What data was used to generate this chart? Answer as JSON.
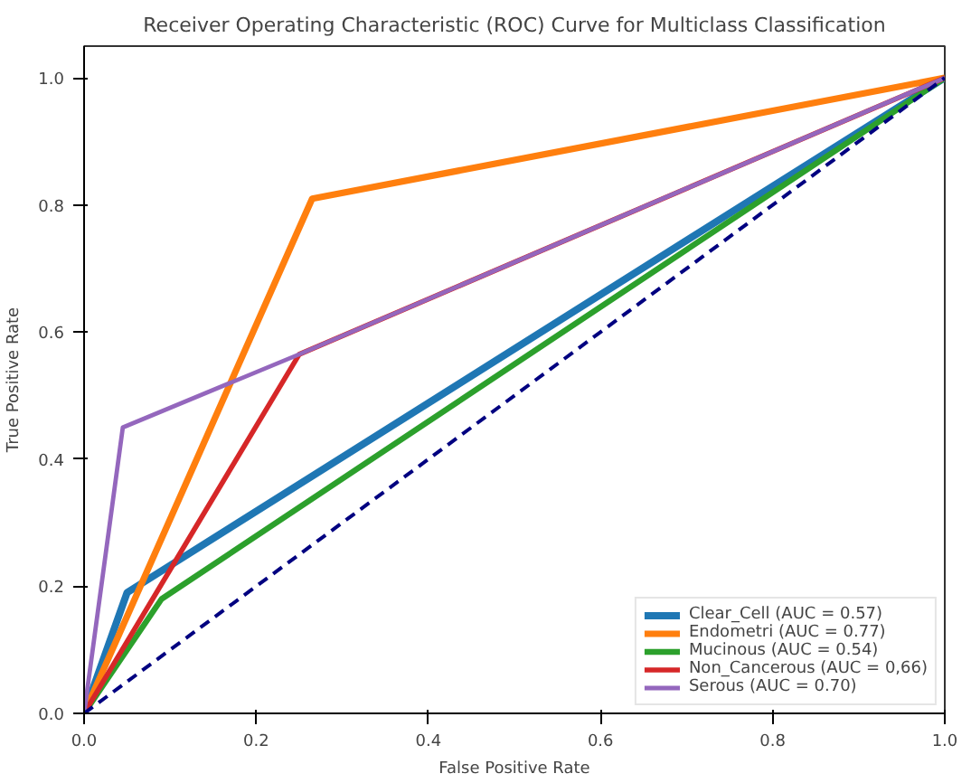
{
  "chart_data": {
    "type": "line",
    "title": "Receiver Operating Characteristic (ROC) Curve for Multiclass Classification",
    "xlabel": "False Positive Rate",
    "ylabel": "True Positive Rate",
    "series": [
      {
        "name": "Clear_Cell (AUC = 0.57)",
        "color": "#1f77b4",
        "x": [
          0,
          0.05,
          1
        ],
        "values": [
          0,
          0.19,
          1
        ]
      },
      {
        "name": "Endometri (AUC = 0.77)",
        "color": "#ff7f0e",
        "x": [
          0,
          0.265,
          1
        ],
        "values": [
          0,
          0.81,
          1
        ]
      },
      {
        "name": "Mucinous (AUC = 0.54)",
        "color": "#2ca02c",
        "x": [
          0,
          0.09,
          1
        ],
        "values": [
          0,
          0.18,
          1
        ]
      },
      {
        "name": "Non_Cancerous (AUC = 0,66)",
        "color": "#d62728",
        "x": [
          0,
          0.25,
          1
        ],
        "values": [
          0,
          0.565,
          1
        ]
      },
      {
        "name": "Serous (AUC = 0.70)",
        "color": "#9467bd",
        "x": [
          0,
          0.045,
          0.25,
          1
        ],
        "values": [
          0,
          0.45,
          0.565,
          1
        ]
      },
      {
        "color": "#000080",
        "line_style": "dashed",
        "x": [
          0,
          1
        ],
        "values": [
          0,
          1
        ]
      }
    ],
    "xlim": [
      0,
      1
    ],
    "ylim": [
      0,
      1.05
    ],
    "xticks": [
      {
        "value": 0,
        "label": "0.0"
      },
      0.2,
      0.4,
      0.6,
      0.8,
      {
        "value": 1,
        "label": "1.0"
      }
    ],
    "yticks": [
      {
        "value": 0,
        "label": "0.0"
      },
      0.2,
      0.4,
      0.6,
      0.8,
      {
        "value": 1,
        "label": "1.0"
      }
    ],
    "grid": false,
    "legend": "bottom right",
    "line_style": "solid",
    "marker": "none"
  }
}
